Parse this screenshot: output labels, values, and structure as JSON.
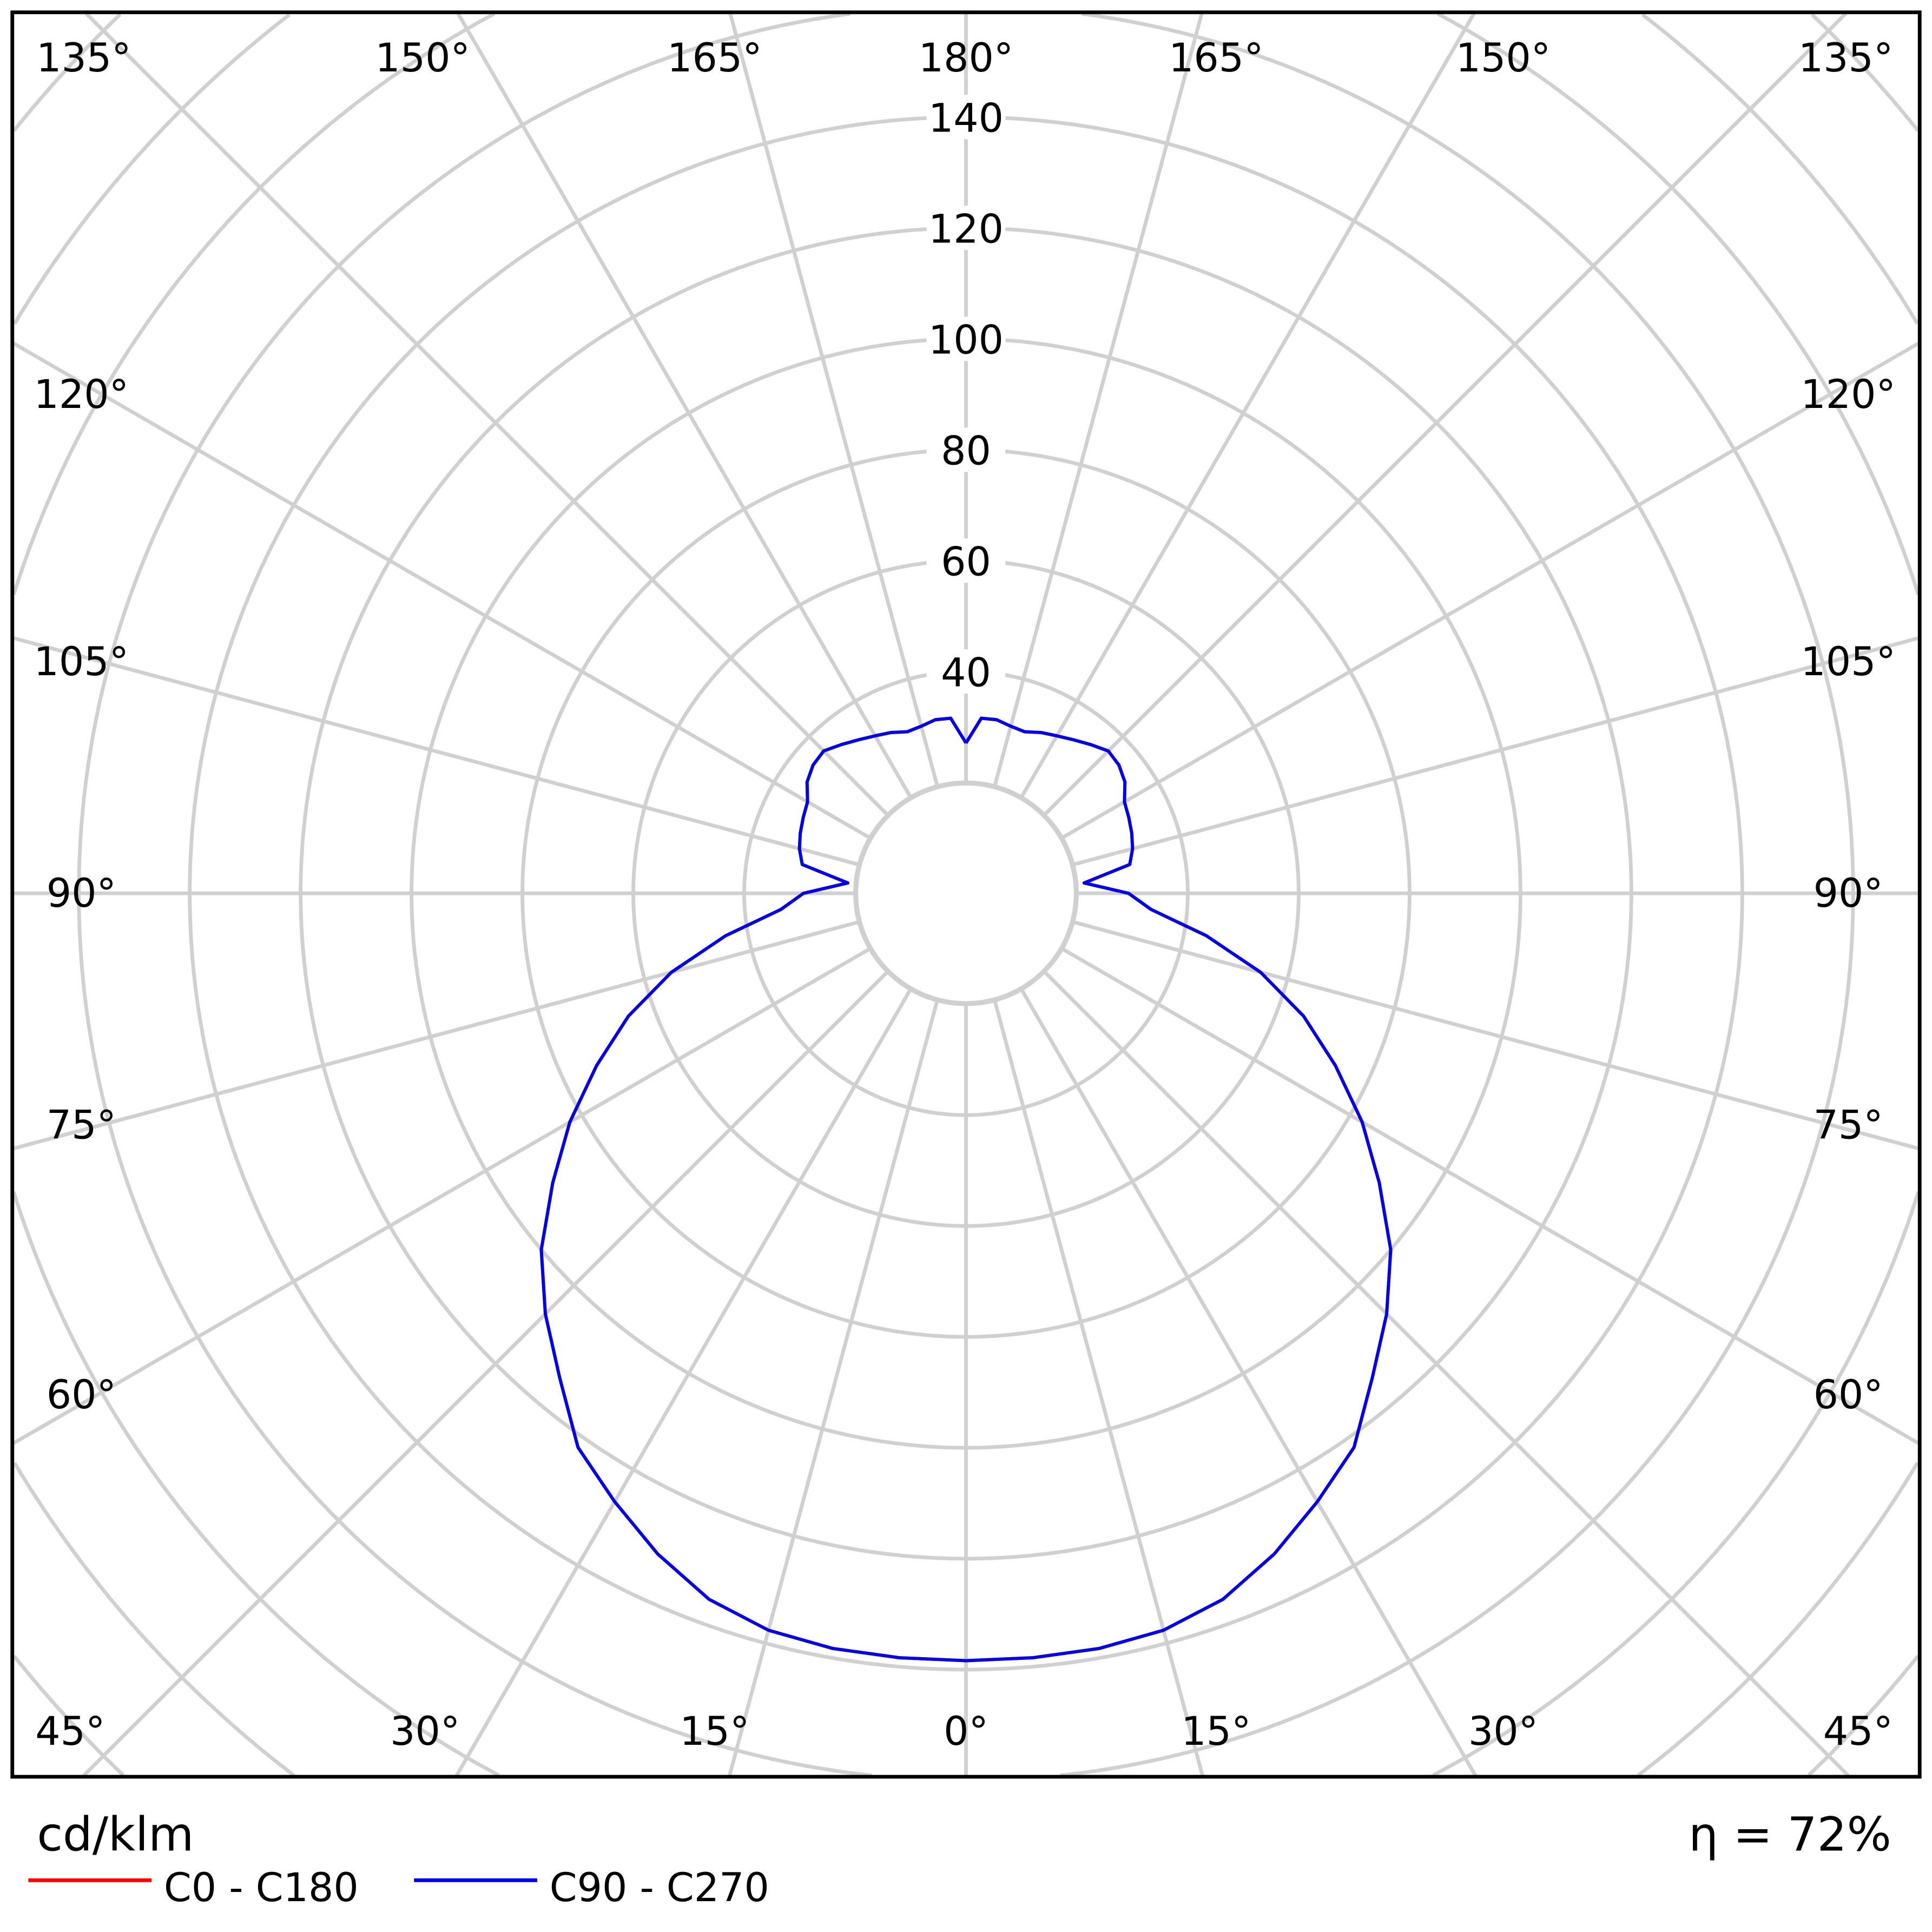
{
  "chart_data": {
    "type": "polar",
    "unit_label": "cd/klm",
    "efficiency_label": "η = 72%",
    "radial_ticks": [
      40,
      60,
      80,
      100,
      120,
      140
    ],
    "radial_tick_labels": [
      "40",
      "60",
      "80",
      "100",
      "120",
      "140"
    ],
    "radial_grid_step": 20,
    "angle_step_deg": 15,
    "angle_labels": {
      "top": [
        "135°",
        "150°",
        "165°",
        "180°",
        "165°",
        "150°",
        "135°"
      ],
      "left": [
        "120°",
        "105°",
        "90°",
        "75°",
        "60°"
      ],
      "right": [
        "120°",
        "105°",
        "90°",
        "75°",
        "60°"
      ],
      "bottom": [
        "45°",
        "30°",
        "15°",
        "0°",
        "15°",
        "30°",
        "45°"
      ]
    },
    "grid": true,
    "legend_position": "bottom-left",
    "gamma_deg": [
      0,
      5,
      10,
      15,
      20,
      25,
      30,
      35,
      40,
      45,
      50,
      55,
      60,
      65,
      70,
      75,
      80,
      85,
      90,
      95,
      100,
      105,
      110,
      115,
      120,
      125,
      130,
      135,
      140,
      145,
      150,
      155,
      160,
      165,
      170,
      175,
      180
    ],
    "series": [
      {
        "name": "C0 - C180",
        "color": "#ff0000",
        "values": [
          138.4,
          138.4,
          138.3,
          137.6,
          135.5,
          131.5,
          126.7,
          122,
          114,
          107.3,
          100,
          91,
          82.5,
          73.5,
          64.8,
          55,
          44,
          33.5,
          29.3,
          21.4,
          30,
          31.1,
          31.8,
          32.4,
          33,
          35,
          36,
          36.3,
          35,
          33.8,
          32.8,
          32,
          31,
          31.2,
          31.8,
          31.7,
          27.1
        ]
      },
      {
        "name": "C90 - C270",
        "color": "#0000ee",
        "values": [
          138.4,
          138.4,
          138.3,
          137.6,
          135.5,
          131.5,
          126.7,
          122,
          114,
          107.3,
          100,
          91,
          82.5,
          73.5,
          64.8,
          55,
          44,
          33.5,
          29.3,
          21.4,
          30,
          31.1,
          31.8,
          32.4,
          33,
          35,
          36,
          36.3,
          35,
          33.8,
          32.8,
          32,
          31,
          31.2,
          31.8,
          31.7,
          27.1
        ]
      }
    ]
  }
}
